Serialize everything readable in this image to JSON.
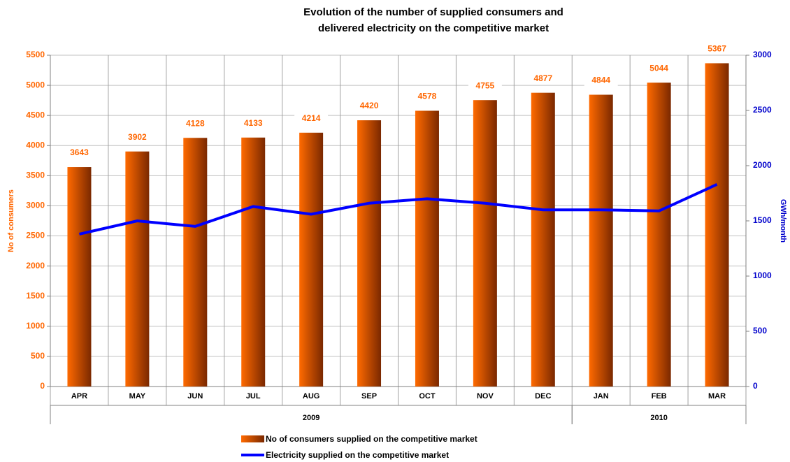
{
  "chart_data": {
    "type": "bar_line",
    "title": [
      "Evolution of the number of supplied consumers and",
      "delivered electricity  on the competitive market"
    ],
    "categories": [
      "APR",
      "MAY",
      "JUN",
      "JUL",
      "AUG",
      "SEP",
      "OCT",
      "NOV",
      "DEC",
      "JAN",
      "FEB",
      "MAR"
    ],
    "groups": [
      {
        "name": "2009",
        "count": 9
      },
      {
        "name": "2010",
        "count": 3
      }
    ],
    "y_label": "No of consumers",
    "y2_label": "GWh/month",
    "ylim": [
      0,
      5500
    ],
    "yticks": [
      0,
      500,
      1000,
      1500,
      2000,
      2500,
      3000,
      3500,
      4000,
      4500,
      5000,
      5500
    ],
    "y2lim": [
      0,
      3000
    ],
    "y2ticks": [
      0,
      500,
      1000,
      1500,
      2000,
      2500,
      3000
    ],
    "grid": true,
    "series": [
      {
        "name": "No of  consumers supplied on the competitive market",
        "type": "bar",
        "color": "#ff6a00",
        "color2": "#7a2800",
        "values": [
          3643,
          3902,
          4128,
          4133,
          4214,
          4420,
          4578,
          4755,
          4877,
          4844,
          5044,
          5367
        ]
      },
      {
        "name": "Electricity supplied on the competitive market",
        "type": "line",
        "axis": "y2",
        "color": "#0000ff",
        "values": [
          1380,
          1500,
          1450,
          1630,
          1560,
          1660,
          1700,
          1660,
          1600,
          1600,
          1590,
          1830
        ]
      }
    ]
  }
}
